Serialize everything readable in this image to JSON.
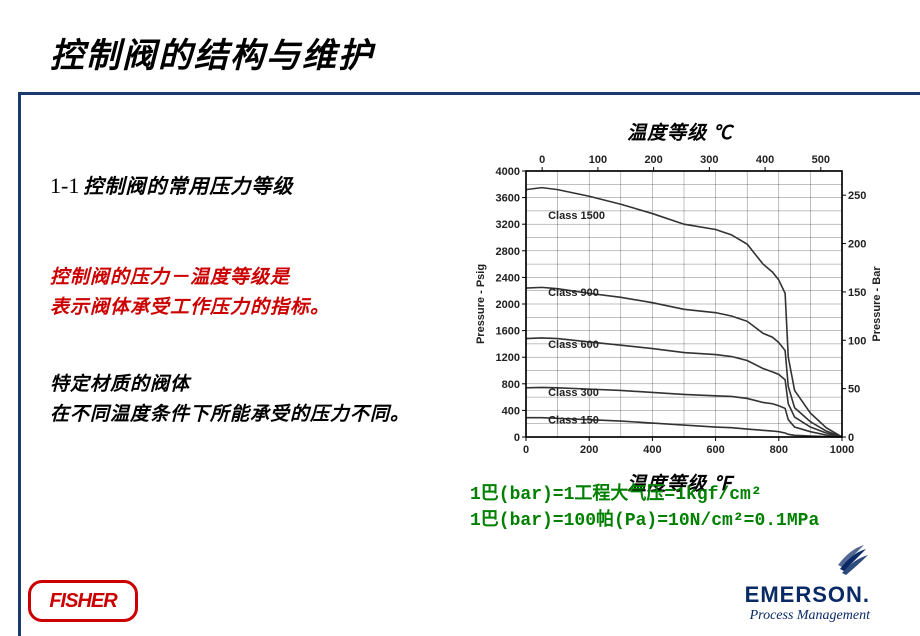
{
  "title": "控制阀的结构与维护",
  "section": {
    "num": "1-1",
    "text": "控制阀的常用压力等级"
  },
  "red_lines": [
    "控制阀的压力－温度等级是",
    "表示阀体承受工作压力的指标。"
  ],
  "black_lines": [
    "特定材质的阀体",
    "在不同温度条件下所能承受的压力不同。"
  ],
  "chart": {
    "type": "line",
    "top_axis_title": "温度等级 ℃",
    "bottom_axis_title": "温度等级 ℉",
    "left_axis_label": "Pressure - Psig",
    "right_axis_label": "Pressure - Bar",
    "x_bottom": {
      "min": 0,
      "max": 1000,
      "ticks": [
        0,
        200,
        400,
        600,
        800,
        1000
      ]
    },
    "x_top": {
      "min": -29,
      "max": 538,
      "ticks": [
        0,
        100,
        200,
        300,
        400,
        500
      ]
    },
    "y_left": {
      "min": 0,
      "max": 4000,
      "ticks": [
        0,
        400,
        800,
        1200,
        1600,
        2000,
        2400,
        2800,
        3200,
        3600,
        4000
      ]
    },
    "y_right": {
      "min": 0,
      "max": 275,
      "ticks": [
        0,
        50,
        100,
        150,
        200,
        250
      ]
    },
    "line_color": "#333333",
    "line_width": 1.6,
    "grid_color": "#000000",
    "grid_width": 0.4,
    "minor_grid_color": "#000000",
    "minor_grid_width": 0.25,
    "background": "#ffffff",
    "series": [
      {
        "label": "Class 1500",
        "label_xy": [
          70,
          3280
        ],
        "points": [
          [
            0,
            3720
          ],
          [
            50,
            3750
          ],
          [
            100,
            3720
          ],
          [
            200,
            3620
          ],
          [
            300,
            3500
          ],
          [
            400,
            3360
          ],
          [
            500,
            3200
          ],
          [
            600,
            3120
          ],
          [
            650,
            3040
          ],
          [
            700,
            2900
          ],
          [
            750,
            2600
          ],
          [
            780,
            2480
          ],
          [
            800,
            2360
          ],
          [
            820,
            2160
          ],
          [
            830,
            1200
          ],
          [
            850,
            700
          ],
          [
            900,
            360
          ],
          [
            950,
            140
          ],
          [
            1000,
            0
          ]
        ]
      },
      {
        "label": "Class 900",
        "label_xy": [
          70,
          2120
        ],
        "points": [
          [
            0,
            2240
          ],
          [
            50,
            2250
          ],
          [
            100,
            2230
          ],
          [
            200,
            2160
          ],
          [
            300,
            2100
          ],
          [
            400,
            2020
          ],
          [
            500,
            1920
          ],
          [
            600,
            1870
          ],
          [
            650,
            1820
          ],
          [
            700,
            1740
          ],
          [
            750,
            1560
          ],
          [
            780,
            1500
          ],
          [
            800,
            1420
          ],
          [
            820,
            1300
          ],
          [
            830,
            760
          ],
          [
            850,
            440
          ],
          [
            900,
            230
          ],
          [
            950,
            90
          ],
          [
            1000,
            0
          ]
        ]
      },
      {
        "label": "Class 600",
        "label_xy": [
          70,
          1340
        ],
        "points": [
          [
            0,
            1480
          ],
          [
            50,
            1490
          ],
          [
            100,
            1480
          ],
          [
            200,
            1430
          ],
          [
            300,
            1380
          ],
          [
            400,
            1330
          ],
          [
            500,
            1270
          ],
          [
            600,
            1240
          ],
          [
            650,
            1210
          ],
          [
            700,
            1150
          ],
          [
            750,
            1030
          ],
          [
            780,
            980
          ],
          [
            800,
            940
          ],
          [
            820,
            860
          ],
          [
            830,
            500
          ],
          [
            850,
            300
          ],
          [
            900,
            150
          ],
          [
            950,
            60
          ],
          [
            1000,
            0
          ]
        ]
      },
      {
        "label": "Class 300",
        "label_xy": [
          70,
          620
        ],
        "points": [
          [
            0,
            740
          ],
          [
            50,
            745
          ],
          [
            100,
            740
          ],
          [
            200,
            720
          ],
          [
            300,
            700
          ],
          [
            400,
            670
          ],
          [
            500,
            640
          ],
          [
            600,
            620
          ],
          [
            650,
            610
          ],
          [
            700,
            580
          ],
          [
            750,
            520
          ],
          [
            780,
            500
          ],
          [
            800,
            470
          ],
          [
            820,
            430
          ],
          [
            830,
            260
          ],
          [
            850,
            150
          ],
          [
            900,
            80
          ],
          [
            950,
            30
          ],
          [
            1000,
            0
          ]
        ]
      },
      {
        "label": "Class 150",
        "label_xy": [
          70,
          200
        ],
        "points": [
          [
            0,
            290
          ],
          [
            50,
            290
          ],
          [
            100,
            280
          ],
          [
            200,
            260
          ],
          [
            300,
            240
          ],
          [
            400,
            210
          ],
          [
            500,
            180
          ],
          [
            600,
            150
          ],
          [
            650,
            140
          ],
          [
            700,
            120
          ],
          [
            750,
            100
          ],
          [
            780,
            90
          ],
          [
            800,
            80
          ],
          [
            820,
            60
          ],
          [
            830,
            40
          ],
          [
            850,
            25
          ],
          [
            900,
            15
          ],
          [
            950,
            6
          ],
          [
            1000,
            0
          ]
        ]
      }
    ]
  },
  "green_notes": [
    "1巴(bar)=1工程大气压=1kgf/cm²",
    "1巴(bar)=100帕(Pa)=10N/cm²=0.1MPa"
  ],
  "logos": {
    "fisher": "FISHER",
    "emerson_name": "EMERSON.",
    "emerson_tag": "Process Management"
  },
  "colors": {
    "rule": "#1a3a6e",
    "red": "#cc0000",
    "green": "#008000",
    "emerson_blue": "#0a2a66"
  }
}
